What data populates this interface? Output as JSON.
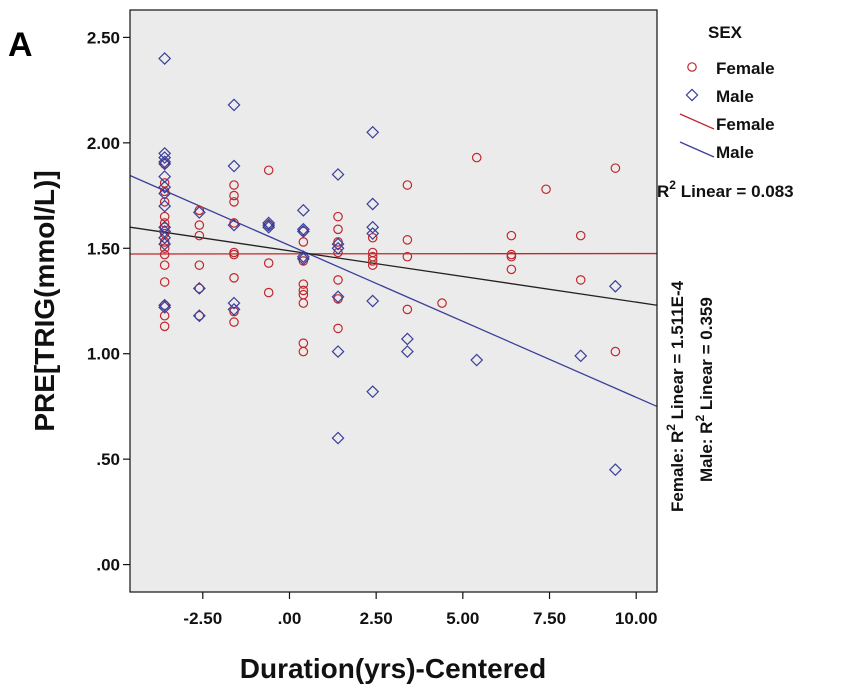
{
  "panel_label": "A",
  "chart_data": {
    "type": "scatter",
    "xlabel": "Duration(yrs)-Centered",
    "ylabel": "PRE[TRIG(mmol/L)]",
    "xlim": [
      -4.6,
      10.6
    ],
    "ylim": [
      -0.13,
      2.63
    ],
    "x_ticks": [
      -2.5,
      0,
      2.5,
      5,
      7.5,
      10
    ],
    "x_tick_labels": [
      "-2.50",
      ".00",
      "2.50",
      "5.00",
      "7.50",
      "10.00"
    ],
    "y_ticks": [
      0,
      0.5,
      1,
      1.5,
      2,
      2.5
    ],
    "y_tick_labels": [
      ".00",
      ".50",
      "1.00",
      "1.50",
      "2.00",
      "2.50"
    ],
    "grid": false,
    "background": "#ebebeb",
    "legend": {
      "title": "SEX",
      "placement": "right",
      "entries": [
        {
          "label": "Female",
          "kind": "marker",
          "marker": "circle",
          "color": "#c0282d"
        },
        {
          "label": "Male",
          "kind": "marker",
          "marker": "diamond",
          "color": "#3a3f9a"
        },
        {
          "label": "Female",
          "kind": "line",
          "color": "#c0282d"
        },
        {
          "label": "Male",
          "kind": "line",
          "color": "#3a3f9a"
        }
      ]
    },
    "annotations": {
      "total": {
        "prefix": "R",
        "sup": "2",
        "suffix": " Linear = 0.083"
      },
      "female": {
        "prefix": "Female: R",
        "sup": "2",
        "suffix": " Linear = 1.511E-4"
      },
      "male": {
        "prefix": "Male: R",
        "sup": "2",
        "suffix": " Linear = 0.359"
      }
    },
    "series": [
      {
        "name": "Female",
        "marker": "circle",
        "color": "#c0282d",
        "points": [
          [
            -3.6,
            1.13
          ],
          [
            -3.6,
            1.18
          ],
          [
            -3.6,
            1.23
          ],
          [
            -3.6,
            1.34
          ],
          [
            -3.6,
            1.42
          ],
          [
            -3.6,
            1.47
          ],
          [
            -3.6,
            1.5
          ],
          [
            -3.6,
            1.53
          ],
          [
            -3.6,
            1.57
          ],
          [
            -3.6,
            1.6
          ],
          [
            -3.6,
            1.62
          ],
          [
            -3.6,
            1.65
          ],
          [
            -3.6,
            1.72
          ],
          [
            -3.6,
            1.77
          ],
          [
            -3.6,
            1.81
          ],
          [
            -3.6,
            1.9
          ],
          [
            -2.6,
            1.18
          ],
          [
            -2.6,
            1.31
          ],
          [
            -2.6,
            1.42
          ],
          [
            -2.6,
            1.56
          ],
          [
            -2.6,
            1.61
          ],
          [
            -2.6,
            1.68
          ],
          [
            -1.6,
            1.15
          ],
          [
            -1.6,
            1.2
          ],
          [
            -1.6,
            1.36
          ],
          [
            -1.6,
            1.47
          ],
          [
            -1.6,
            1.48
          ],
          [
            -1.6,
            1.62
          ],
          [
            -1.6,
            1.72
          ],
          [
            -1.6,
            1.75
          ],
          [
            -1.6,
            1.8
          ],
          [
            -0.6,
            1.29
          ],
          [
            -0.6,
            1.43
          ],
          [
            -0.6,
            1.61
          ],
          [
            -0.6,
            1.87
          ],
          [
            0.4,
            1.01
          ],
          [
            0.4,
            1.05
          ],
          [
            0.4,
            1.24
          ],
          [
            0.4,
            1.28
          ],
          [
            0.4,
            1.3
          ],
          [
            0.4,
            1.33
          ],
          [
            0.4,
            1.44
          ],
          [
            0.4,
            1.53
          ],
          [
            0.4,
            1.58
          ],
          [
            1.4,
            1.12
          ],
          [
            1.4,
            1.26
          ],
          [
            1.4,
            1.35
          ],
          [
            1.4,
            1.48
          ],
          [
            1.4,
            1.53
          ],
          [
            1.4,
            1.59
          ],
          [
            1.4,
            1.65
          ],
          [
            2.4,
            1.42
          ],
          [
            2.4,
            1.44
          ],
          [
            2.4,
            1.46
          ],
          [
            2.4,
            1.48
          ],
          [
            2.4,
            1.55
          ],
          [
            3.4,
            1.21
          ],
          [
            3.4,
            1.46
          ],
          [
            3.4,
            1.54
          ],
          [
            3.4,
            1.8
          ],
          [
            4.4,
            1.24
          ],
          [
            5.4,
            1.93
          ],
          [
            6.4,
            1.4
          ],
          [
            6.4,
            1.46
          ],
          [
            6.4,
            1.47
          ],
          [
            6.4,
            1.56
          ],
          [
            7.4,
            1.78
          ],
          [
            8.4,
            1.35
          ],
          [
            8.4,
            1.56
          ],
          [
            9.4,
            1.01
          ],
          [
            9.4,
            1.88
          ]
        ]
      },
      {
        "name": "Male",
        "marker": "diamond",
        "color": "#3a3f9a",
        "points": [
          [
            -3.6,
            2.4
          ],
          [
            -3.6,
            1.95
          ],
          [
            -3.6,
            1.93
          ],
          [
            -3.6,
            1.91
          ],
          [
            -3.6,
            1.9
          ],
          [
            -3.6,
            1.84
          ],
          [
            -3.6,
            1.79
          ],
          [
            -3.6,
            1.76
          ],
          [
            -3.6,
            1.7
          ],
          [
            -3.6,
            1.6
          ],
          [
            -3.6,
            1.58
          ],
          [
            -3.6,
            1.55
          ],
          [
            -3.6,
            1.52
          ],
          [
            -3.6,
            1.23
          ],
          [
            -3.6,
            1.22
          ],
          [
            -2.6,
            1.67
          ],
          [
            -2.6,
            1.31
          ],
          [
            -2.6,
            1.18
          ],
          [
            -1.6,
            2.18
          ],
          [
            -1.6,
            1.89
          ],
          [
            -1.6,
            1.61
          ],
          [
            -1.6,
            1.24
          ],
          [
            -1.6,
            1.21
          ],
          [
            -0.6,
            1.62
          ],
          [
            -0.6,
            1.61
          ],
          [
            -0.6,
            1.6
          ],
          [
            0.4,
            1.68
          ],
          [
            0.4,
            1.59
          ],
          [
            0.4,
            1.58
          ],
          [
            0.4,
            1.46
          ],
          [
            0.4,
            1.45
          ],
          [
            1.4,
            1.85
          ],
          [
            1.4,
            1.52
          ],
          [
            1.4,
            1.5
          ],
          [
            1.4,
            1.27
          ],
          [
            1.4,
            1.01
          ],
          [
            1.4,
            0.6
          ],
          [
            2.4,
            2.05
          ],
          [
            2.4,
            1.71
          ],
          [
            2.4,
            1.6
          ],
          [
            2.4,
            1.57
          ],
          [
            2.4,
            1.25
          ],
          [
            2.4,
            0.82
          ],
          [
            3.4,
            1.07
          ],
          [
            3.4,
            1.01
          ],
          [
            5.4,
            0.97
          ],
          [
            8.4,
            0.99
          ],
          [
            9.4,
            1.32
          ],
          [
            9.4,
            0.45
          ]
        ]
      }
    ],
    "fit_lines": [
      {
        "name": "Female",
        "color": "#c0282d",
        "points": [
          [
            -4.6,
            1.473
          ],
          [
            10.6,
            1.475
          ]
        ]
      },
      {
        "name": "Male",
        "color": "#3a3f9a",
        "points": [
          [
            -4.6,
            1.845
          ],
          [
            10.6,
            0.75
          ]
        ]
      },
      {
        "name": "Total",
        "color": "#222222",
        "points": [
          [
            -4.6,
            1.6
          ],
          [
            10.6,
            1.23
          ]
        ]
      }
    ]
  }
}
